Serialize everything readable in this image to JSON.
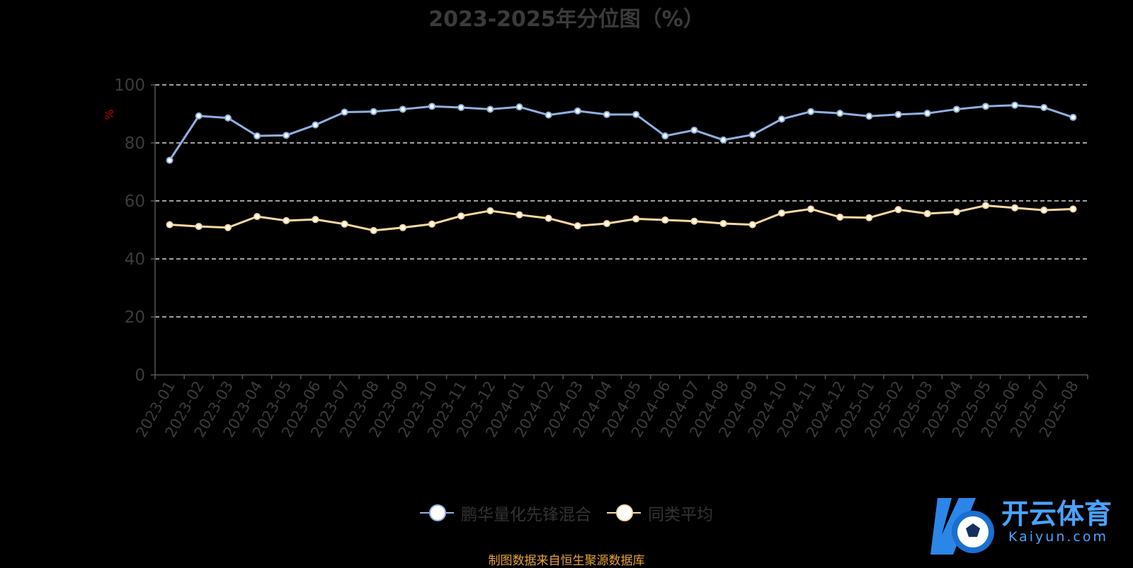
{
  "chart_data": {
    "type": "line",
    "title": "2023-2025年分位图（%）",
    "ylabel": "%",
    "ylim": [
      0,
      100
    ],
    "yticks": [
      0,
      20,
      40,
      60,
      80,
      100
    ],
    "grid": true,
    "legend_position": "bottom-center",
    "categories": [
      "2023-01",
      "2023-02",
      "2023-03",
      "2023-04",
      "2023-05",
      "2023-06",
      "2023-07",
      "2023-08",
      "2023-09",
      "2023-10",
      "2023-11",
      "2023-12",
      "2024-01",
      "2024-02",
      "2024-03",
      "2024-04",
      "2024-05",
      "2024-06",
      "2024-07",
      "2024-08",
      "2024-09",
      "2024-10",
      "2024-11",
      "2024-12",
      "2025-01",
      "2025-02",
      "2025-03",
      "2025-04",
      "2025-05",
      "2025-06",
      "2025-07",
      "2025-08"
    ],
    "series": [
      {
        "name": "鹏华量化先锋混合",
        "color": "#8fb0e0",
        "values": [
          74,
          89.3,
          88.6,
          82.4,
          82.6,
          86.2,
          90.6,
          90.8,
          91.6,
          92.6,
          92.2,
          91.6,
          92.4,
          89.6,
          91,
          89.8,
          89.8,
          82.4,
          84.4,
          81,
          82.8,
          88.2,
          90.8,
          90.2,
          89.2,
          89.8,
          90.2,
          91.6,
          92.6,
          93,
          92.2,
          88.8
        ]
      },
      {
        "name": "同类平均",
        "color": "#fbd89e",
        "values": [
          51.8,
          51.2,
          50.8,
          54.6,
          53.2,
          53.6,
          52,
          49.8,
          50.8,
          52,
          54.8,
          56.6,
          55.2,
          54,
          51.4,
          52.2,
          53.8,
          53.4,
          53,
          52.2,
          51.8,
          55.8,
          57.2,
          54.4,
          54.2,
          57,
          55.6,
          56.2,
          58.4,
          57.6,
          56.8,
          57.2
        ]
      }
    ]
  },
  "colors": {
    "background": "#000000",
    "axis": "#555555",
    "tick_text": "#3b3b3b",
    "grid": "#ffffff",
    "ylabel": "#c00000",
    "source": "#e8a13a",
    "watermark": "#4aa3ff"
  },
  "source_text": "制图数据来自恒生聚源数据库",
  "watermark": {
    "name": "开云体育",
    "sub": "Kaiyun.com"
  }
}
